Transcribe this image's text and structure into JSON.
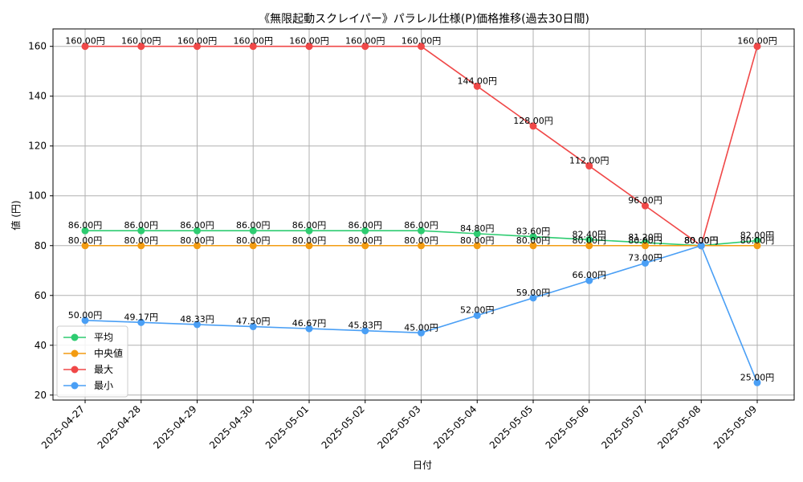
{
  "chart_data": {
    "type": "line",
    "title": "《無限起動スクレイパー》パラレル仕様(P)価格推移(過去30日間)",
    "xlabel": "日付",
    "ylabel": "値 (円)",
    "categories": [
      "2025-04-27",
      "2025-04-28",
      "2025-04-29",
      "2025-04-30",
      "2025-05-01",
      "2025-05-02",
      "2025-05-03",
      "2025-05-04",
      "2025-05-05",
      "2025-05-06",
      "2025-05-07",
      "2025-05-08",
      "2025-05-09"
    ],
    "ylim": [
      18,
      167
    ],
    "yticks": [
      20,
      40,
      60,
      80,
      100,
      120,
      140,
      160
    ],
    "grid": true,
    "legend_position": "lower-left",
    "value_suffix": "円",
    "series": [
      {
        "name": "平均",
        "color": "#2ecc71",
        "values": [
          86.0,
          86.0,
          86.0,
          86.0,
          86.0,
          86.0,
          86.0,
          84.8,
          83.6,
          82.4,
          81.2,
          80.0,
          82.0
        ]
      },
      {
        "name": "中央値",
        "color": "#f39c12",
        "values": [
          80.0,
          80.0,
          80.0,
          80.0,
          80.0,
          80.0,
          80.0,
          80.0,
          80.0,
          80.0,
          80.0,
          80.0,
          80.0
        ]
      },
      {
        "name": "最大",
        "color": "#f04848",
        "values": [
          160.0,
          160.0,
          160.0,
          160.0,
          160.0,
          160.0,
          160.0,
          144.0,
          128.0,
          112.0,
          96.0,
          80.0,
          160.0
        ]
      },
      {
        "name": "最小",
        "color": "#4a9ff5",
        "values": [
          50.0,
          49.17,
          48.33,
          47.5,
          46.67,
          45.83,
          45.0,
          52.0,
          59.0,
          66.0,
          73.0,
          80.0,
          25.0
        ]
      }
    ]
  }
}
